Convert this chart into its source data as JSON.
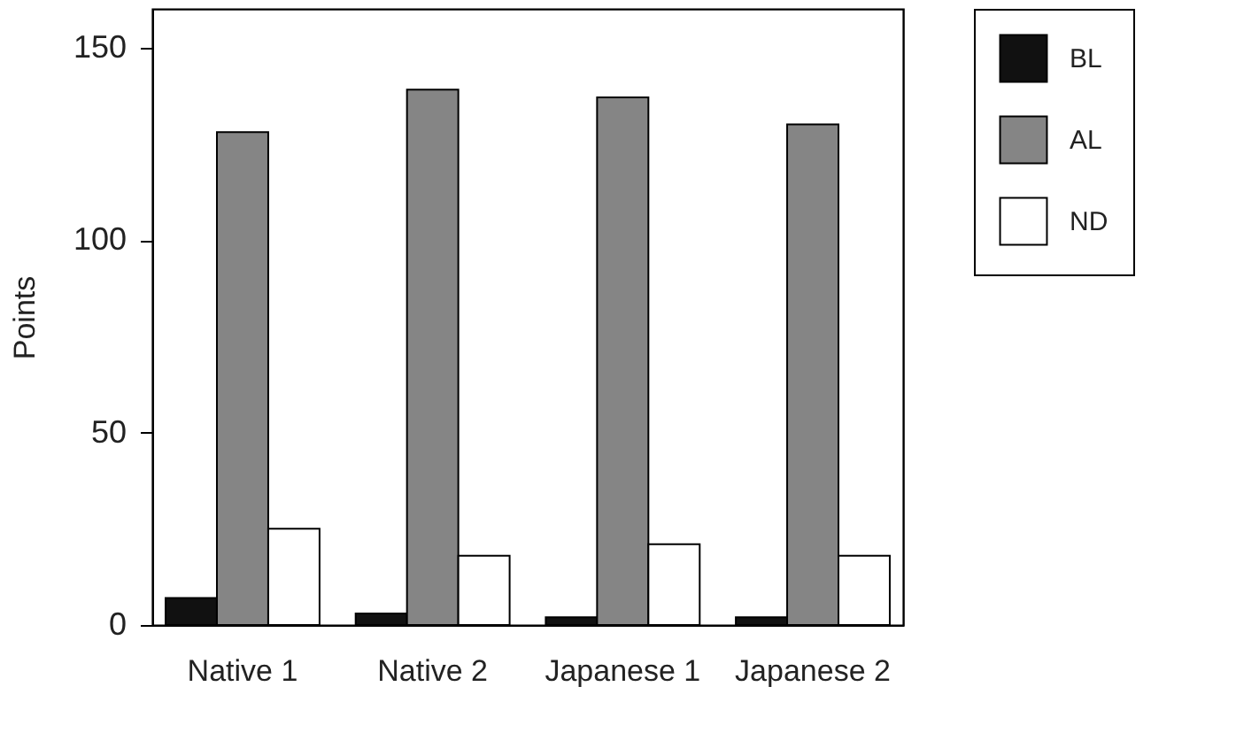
{
  "chart_data": {
    "type": "bar",
    "ylabel": "Points",
    "categories": [
      "Native 1",
      "Native 2",
      "Japanese 1",
      "Japanese 2"
    ],
    "series": [
      {
        "name": "BL",
        "color": "#111111",
        "values": [
          7,
          3,
          2,
          2
        ]
      },
      {
        "name": "AL",
        "color": "#858585",
        "values": [
          128,
          139,
          137,
          130
        ]
      },
      {
        "name": "ND",
        "color": "#ffffff",
        "values": [
          25,
          18,
          21,
          18
        ]
      }
    ],
    "ylim": [
      0,
      160
    ],
    "yticks": [
      0,
      50,
      100,
      150
    ],
    "legend": "right"
  }
}
